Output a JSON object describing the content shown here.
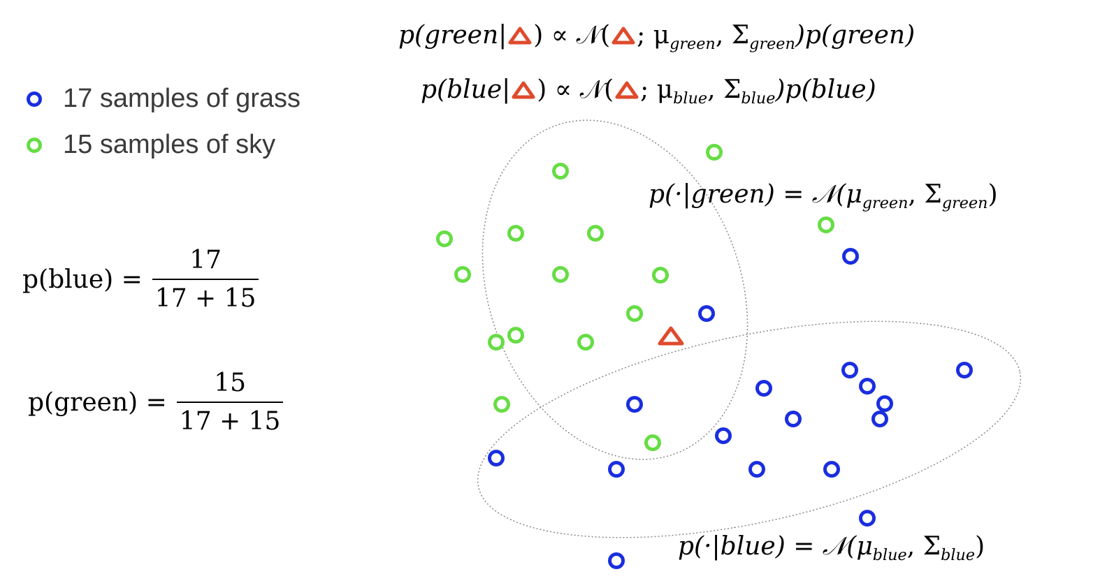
{
  "legend": {
    "blue_label": "17 samples of grass",
    "green_label": "15 samples of sky"
  },
  "equations": {
    "p_blue_lhs": "p(blue) =",
    "p_blue_num": "17",
    "p_blue_den": "17 + 15",
    "p_green_lhs": "p(green) =",
    "p_green_num": "15",
    "p_green_den": "17 + 15",
    "post_green_lhs": "p(green|",
    "post_green_mid": ") ∝ 𝒩(",
    "post_green_rhs_a": "; μ",
    "post_green_sub_mu": "green",
    "post_green_rhs_b": ", Σ",
    "post_green_sub_sigma": "green",
    "post_green_rhs_c": ")p(green)",
    "post_blue_lhs": "p(blue|",
    "post_blue_mid": ") ∝ 𝒩(",
    "post_blue_rhs_a": "; μ",
    "post_blue_sub_mu": "blue",
    "post_blue_rhs_b": ", Σ",
    "post_blue_sub_sigma": "blue",
    "post_blue_rhs_c": ")p(blue)",
    "lik_green_a": "p(·|green) = 𝒩(μ",
    "lik_green_sub_mu": "green",
    "lik_green_b": ", Σ",
    "lik_green_sub_sigma": "green",
    "lik_green_c": ")",
    "lik_blue_a": "p(·|blue) = 𝒩(μ",
    "lik_blue_sub_mu": "blue",
    "lik_blue_b": ", Σ",
    "lik_blue_sub_sigma": "blue",
    "lik_blue_c": ")"
  },
  "colors": {
    "blue": "#1a2ee0",
    "green": "#66dd44",
    "triangle": "#e04a2c",
    "ellipse": "#888888"
  }
}
